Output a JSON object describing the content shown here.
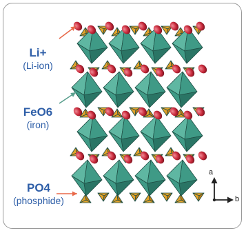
{
  "labels": [
    {
      "main": "Li+",
      "sub": "(Li-ion)"
    },
    {
      "main": "FeO6",
      "sub": "(iron)"
    },
    {
      "main": "PO4",
      "sub": "(phosphide)"
    }
  ],
  "axes": {
    "vertical": "a",
    "horizontal": "b"
  },
  "colors": {
    "octahedron_light": "#5fb7a2",
    "octahedron_mid": "#3f9a86",
    "octahedron_dark": "#2a7565",
    "tetrahedron": "#e3a22a",
    "tetrahedron_dark": "#c27b12",
    "lithium": "#c8283a",
    "label_text": "#2f5fa8",
    "pointer": "#e8694a",
    "frame": "#9a9a9a"
  }
}
